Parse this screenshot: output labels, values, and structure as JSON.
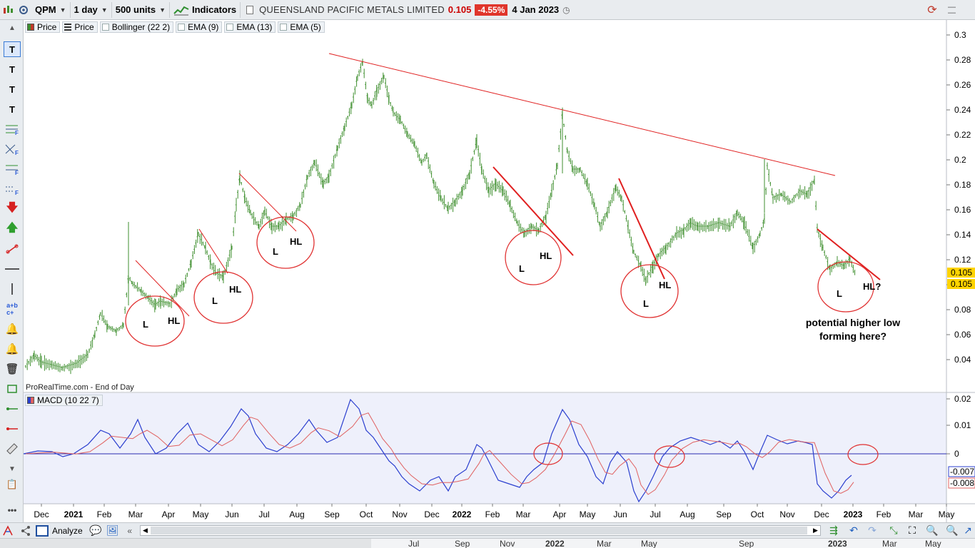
{
  "toolbar": {
    "symbol": "QPM",
    "timeframe": "1 day",
    "units": "500 units",
    "indicators_label": "Indicators",
    "instrument_name": "QUEENSLAND PACIFIC METALS LIMITED",
    "last_price": "0.105",
    "change": "-4.55%",
    "date": "4 Jan 2023"
  },
  "legend": {
    "items": [
      "Price",
      "Price",
      "Bollinger (22 2)",
      "EMA (9)",
      "EMA (13)",
      "EMA (5)"
    ],
    "macd": "MACD (10 22 7)",
    "footnote": "ProRealTime.com - End of Day"
  },
  "price_axis": {
    "ticks": [
      "0.3",
      "0.28",
      "0.26",
      "0.24",
      "0.22",
      "0.2",
      "0.18",
      "0.16",
      "0.14",
      "0.12",
      "0.1",
      "0.08",
      "0.06",
      "0.04"
    ],
    "last_badge_1": "0.105",
    "last_badge_2": "0.105"
  },
  "macd_axis": {
    "ticks": [
      "0.02",
      "0.01",
      "0",
      "-0.007",
      "-0.008"
    ]
  },
  "time_axis": [
    "Dec",
    "2021",
    "Feb",
    "Mar",
    "Apr",
    "May",
    "Jun",
    "Jul",
    "Aug",
    "Sep",
    "Oct",
    "Nov",
    "Dec",
    "2022",
    "Feb",
    "Mar",
    "Apr",
    "May",
    "Jun",
    "Jul",
    "Aug",
    "Sep",
    "Oct",
    "Nov",
    "Dec",
    "2023",
    "Feb",
    "Mar",
    "May"
  ],
  "annotations": {
    "labels": [
      "L",
      "HL",
      "L",
      "HL",
      "L",
      "HL",
      "L",
      "HL",
      "L",
      "HL",
      "L",
      "HL?"
    ],
    "note_line1": "potential higher low",
    "note_line2": "forming here?"
  },
  "bottom": {
    "analyze_label": "Analyze",
    "overview_labels": [
      "Jul",
      "Sep",
      "Nov",
      "2022",
      "Mar",
      "May",
      "Sep",
      "2023",
      "Mar",
      "May"
    ]
  },
  "colors": {
    "candle": "#3f8f2f",
    "trendline": "#e02020",
    "macd_line": "#2b3fcf",
    "signal_line": "#e06060",
    "highlight_badge": "#ffd400"
  }
}
